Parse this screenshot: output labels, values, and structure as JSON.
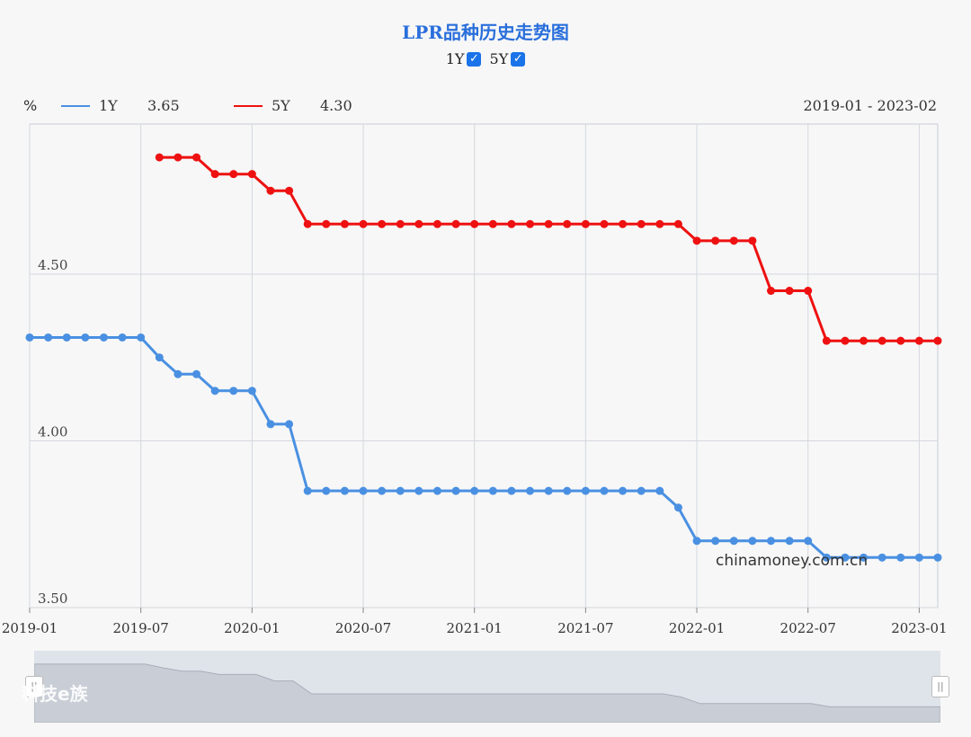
{
  "header": {
    "title": "LPR品种历史走势图",
    "toggles": [
      {
        "label": "1Y",
        "checked": true
      },
      {
        "label": "5Y",
        "checked": true
      }
    ]
  },
  "legend": {
    "unit": "%",
    "items": [
      {
        "name": "1Y",
        "value": "3.65",
        "color": "#4a90e2"
      },
      {
        "name": "5Y",
        "value": "4.30",
        "color": "#ee1111"
      }
    ],
    "range": "2019-01 - 2023-02"
  },
  "watermarks": {
    "site": "chinamoney.com.cn",
    "brand": "科技e族"
  },
  "chart_data": {
    "type": "line",
    "ylim": [
      3.5,
      4.95
    ],
    "yticks": [
      "3.50",
      "4.00",
      "4.50"
    ],
    "xticks": [
      "2019-01",
      "2019-07",
      "2020-01",
      "2020-07",
      "2021-01",
      "2021-07",
      "2022-01",
      "2022-07",
      "2023-01"
    ],
    "x": [
      "2019-01",
      "2019-02",
      "2019-03",
      "2019-04",
      "2019-05",
      "2019-06",
      "2019-07",
      "2019-08",
      "2019-09",
      "2019-10",
      "2019-11",
      "2019-12",
      "2020-01",
      "2020-02",
      "2020-03",
      "2020-04",
      "2020-05",
      "2020-06",
      "2020-07",
      "2020-08",
      "2020-09",
      "2020-10",
      "2020-11",
      "2020-12",
      "2021-01",
      "2021-02",
      "2021-03",
      "2021-04",
      "2021-05",
      "2021-06",
      "2021-07",
      "2021-08",
      "2021-09",
      "2021-10",
      "2021-11",
      "2021-12",
      "2022-01",
      "2022-02",
      "2022-03",
      "2022-04",
      "2022-05",
      "2022-06",
      "2022-07",
      "2022-08",
      "2022-09",
      "2022-10",
      "2022-11",
      "2022-12",
      "2023-01",
      "2023-02"
    ],
    "series": [
      {
        "name": "1Y",
        "color": "#4a90e2",
        "values": [
          4.31,
          4.31,
          4.31,
          4.31,
          4.31,
          4.31,
          4.31,
          4.25,
          4.2,
          4.2,
          4.15,
          4.15,
          4.15,
          4.05,
          4.05,
          3.85,
          3.85,
          3.85,
          3.85,
          3.85,
          3.85,
          3.85,
          3.85,
          3.85,
          3.85,
          3.85,
          3.85,
          3.85,
          3.85,
          3.85,
          3.85,
          3.85,
          3.85,
          3.85,
          3.85,
          3.8,
          3.7,
          3.7,
          3.7,
          3.7,
          3.7,
          3.7,
          3.7,
          3.65,
          3.65,
          3.65,
          3.65,
          3.65,
          3.65,
          3.65
        ]
      },
      {
        "name": "5Y",
        "color": "#ee1111",
        "values": [
          null,
          null,
          null,
          null,
          null,
          null,
          null,
          4.85,
          4.85,
          4.85,
          4.8,
          4.8,
          4.8,
          4.75,
          4.75,
          4.65,
          4.65,
          4.65,
          4.65,
          4.65,
          4.65,
          4.65,
          4.65,
          4.65,
          4.65,
          4.65,
          4.65,
          4.65,
          4.65,
          4.65,
          4.65,
          4.65,
          4.65,
          4.65,
          4.65,
          4.65,
          4.6,
          4.6,
          4.6,
          4.6,
          4.45,
          4.45,
          4.45,
          4.3,
          4.3,
          4.3,
          4.3,
          4.3,
          4.3,
          4.3
        ]
      }
    ]
  }
}
